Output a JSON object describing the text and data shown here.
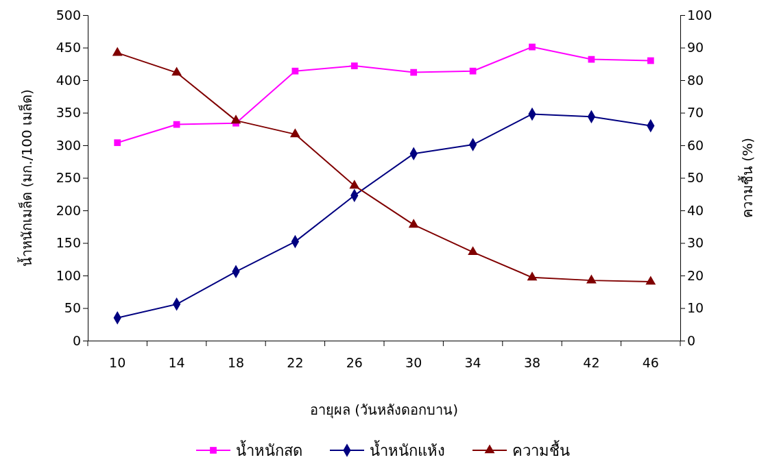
{
  "chart_data": {
    "type": "line",
    "xlabel": "อายุผล (วันหลังดอกบาน)",
    "ylabel": "น้ำหนักเมล็ด (มก./100 เมล็ด)",
    "y2label": "ความชื้น (%)",
    "categories": [
      "10",
      "14",
      "18",
      "22",
      "26",
      "30",
      "34",
      "38",
      "42",
      "46"
    ],
    "ylim": [
      0,
      500
    ],
    "yticks": [
      0,
      50,
      100,
      150,
      200,
      250,
      300,
      350,
      400,
      450,
      500
    ],
    "y2lim": [
      0,
      100
    ],
    "y2ticks": [
      0,
      10,
      20,
      30,
      40,
      50,
      60,
      70,
      80,
      90,
      100
    ],
    "grid": false,
    "legend": "bottom",
    "series": [
      {
        "name": "น้ำหนักสด",
        "color": "#ff00ff",
        "marker": "square",
        "values": [
          304,
          332,
          334,
          414,
          422,
          412,
          414,
          451,
          432,
          430
        ]
      },
      {
        "name": "น้ำหนักแห้ง",
        "color": "#000080",
        "marker": "diamond",
        "values": [
          35,
          56,
          106,
          152,
          223,
          287,
          301,
          348,
          344,
          330
        ]
      },
      {
        "name": "ความชื้น",
        "color": "#800000",
        "marker": "triangle",
        "axis": "y2",
        "values": [
          88.4,
          82.3,
          67.6,
          63.4,
          47.6,
          35.6,
          27.2,
          19.4,
          18.5,
          18.1
        ]
      }
    ]
  }
}
